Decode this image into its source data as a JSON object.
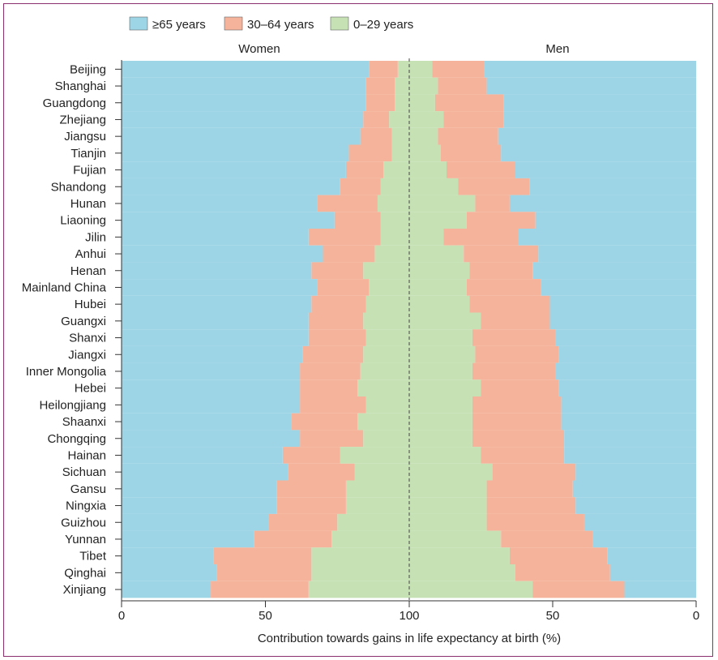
{
  "chart_data": {
    "type": "bar",
    "subtype": "diverging-stacked-horizontal",
    "legend": [
      "≥65 years",
      "30–64 years",
      "0–29 years"
    ],
    "legend_position": "top-left",
    "colors": {
      "age65": "#9dd5e6",
      "age30_64": "#f5b39b",
      "age0_29": "#c6e2b5"
    },
    "panel_titles": {
      "left": "Women",
      "right": "Men"
    },
    "xlabel": "Contribution towards gains in life expectancy at birth (%)",
    "x_ticks": [
      "0",
      "50",
      "100",
      "50",
      "0"
    ],
    "ylim_pct": [
      0,
      100
    ],
    "categories": [
      "Beijing",
      "Shanghai",
      "Guangdong",
      "Zhejiang",
      "Jiangsu",
      "Tianjin",
      "Fujian",
      "Shandong",
      "Hunan",
      "Liaoning",
      "Jilin",
      "Anhui",
      "Henan",
      "Mainland China",
      "Hubei",
      "Guangxi",
      "Shanxi",
      "Jiangxi",
      "Inner Mongolia",
      "Hebei",
      "Heilongjiang",
      "Shaanxi",
      "Chongqing",
      "Hainan",
      "Sichuan",
      "Gansu",
      "Ningxia",
      "Guizhou",
      "Yunnan",
      "Tibet",
      "Qinghai",
      "Xinjiang"
    ],
    "series": [
      {
        "name": "Women 0–29 years",
        "values": [
          4,
          5,
          5,
          7,
          6,
          6,
          9,
          10,
          11,
          10,
          10,
          12,
          16,
          14,
          15,
          16,
          15,
          16,
          17,
          18,
          15,
          18,
          16,
          24,
          19,
          22,
          22,
          25,
          27,
          34,
          34,
          35
        ]
      },
      {
        "name": "Women 30–64 years",
        "values": [
          10,
          10,
          10,
          9,
          11,
          15,
          13,
          14,
          21,
          16,
          25,
          18,
          18,
          18,
          19,
          19,
          20,
          21,
          21,
          20,
          23,
          23,
          22,
          20,
          23,
          24,
          24,
          24,
          27,
          34,
          33,
          34
        ]
      },
      {
        "name": "Women ≥65 years",
        "values": [
          86,
          85,
          85,
          84,
          83,
          79,
          78,
          76,
          68,
          74,
          65,
          70,
          66,
          68,
          66,
          65,
          65,
          63,
          62,
          62,
          62,
          59,
          62,
          56,
          58,
          54,
          54,
          51,
          46,
          32,
          33,
          31
        ]
      },
      {
        "name": "Men 0–29 years",
        "values": [
          8,
          10,
          9,
          12,
          10,
          11,
          13,
          17,
          23,
          20,
          12,
          19,
          21,
          20,
          21,
          25,
          22,
          23,
          22,
          25,
          22,
          22,
          22,
          25,
          29,
          27,
          27,
          27,
          32,
          35,
          37,
          43
        ]
      },
      {
        "name": "Men 30–64 years",
        "values": [
          18,
          17,
          24,
          21,
          21,
          21,
          24,
          25,
          12,
          24,
          26,
          26,
          22,
          26,
          28,
          24,
          29,
          29,
          29,
          27,
          31,
          31,
          32,
          29,
          29,
          30,
          31,
          34,
          32,
          34,
          33,
          32
        ]
      },
      {
        "name": "Men ≥65 years",
        "values": [
          74,
          73,
          67,
          67,
          69,
          68,
          63,
          58,
          65,
          56,
          62,
          55,
          57,
          54,
          51,
          51,
          49,
          48,
          49,
          48,
          47,
          47,
          46,
          46,
          42,
          43,
          42,
          39,
          36,
          31,
          30,
          25
        ]
      }
    ]
  }
}
